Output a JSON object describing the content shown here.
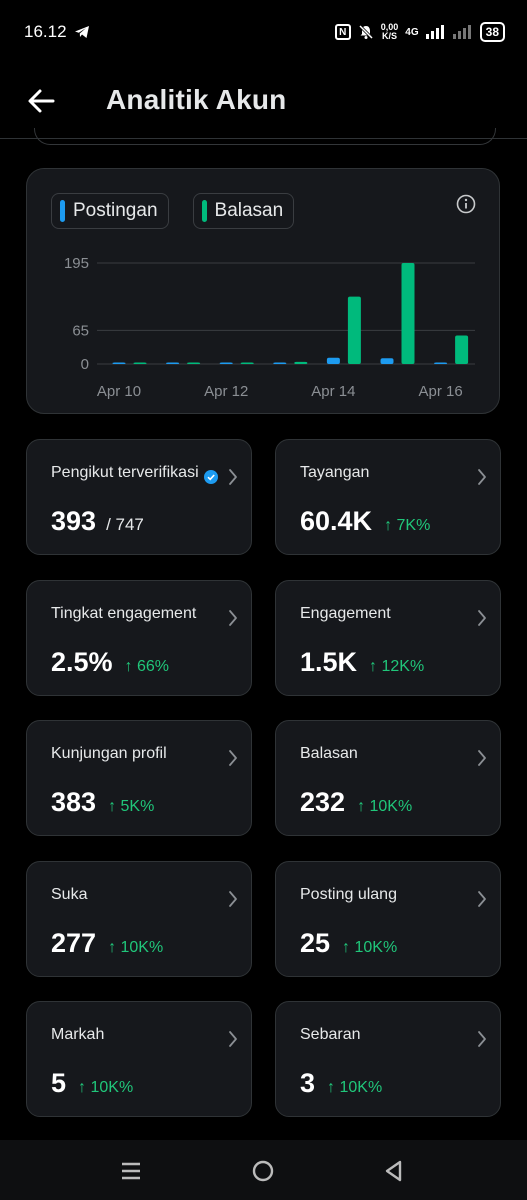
{
  "status_bar": {
    "time": "16.12",
    "speed_top": "0,00",
    "speed_bottom": "K/S",
    "network": "4G",
    "battery": "38"
  },
  "header": {
    "title": "Analitik Akun"
  },
  "chart_data": {
    "type": "bar",
    "categories": [
      "Apr 10",
      "Apr 11",
      "Apr 12",
      "Apr 13",
      "Apr 14",
      "Apr 15",
      "Apr 16"
    ],
    "x_tick_labels": [
      "Apr 10",
      "Apr 12",
      "Apr 14",
      "Apr 16"
    ],
    "y_tick_labels": [
      "195",
      "65",
      "0"
    ],
    "y_ticks": [
      195,
      65,
      0
    ],
    "ylim": [
      0,
      195
    ],
    "grid": true,
    "series": [
      {
        "name": "Postingan",
        "color": "#1d9bf0",
        "values": [
          0,
          0,
          1,
          3,
          12,
          11,
          2
        ]
      },
      {
        "name": "Balasan",
        "color": "#00ba7c",
        "values": [
          0,
          2,
          1,
          4,
          130,
          195,
          55
        ]
      }
    ]
  },
  "tiles": [
    {
      "label": "Pengikut terverifikasi",
      "value": "393",
      "sub": "/ 747",
      "change": ""
    },
    {
      "label": "Tayangan",
      "value": "60.4K",
      "sub": "",
      "change": "↑ 7K%"
    },
    {
      "label": "Tingkat engagement",
      "value": "2.5%",
      "sub": "",
      "change": "↑ 66%"
    },
    {
      "label": "Engagement",
      "value": "1.5K",
      "sub": "",
      "change": "↑ 12K%"
    },
    {
      "label": "Kunjungan profil",
      "value": "383",
      "sub": "",
      "change": "↑ 5K%"
    },
    {
      "label": "Balasan",
      "value": "232",
      "sub": "",
      "change": "↑ 10K%"
    },
    {
      "label": "Suka",
      "value": "277",
      "sub": "",
      "change": "↑ 10K%"
    },
    {
      "label": "Posting ulang",
      "value": "25",
      "sub": "",
      "change": "↑ 10K%"
    },
    {
      "label": "Markah",
      "value": "5",
      "sub": "",
      "change": "↑ 10K%"
    },
    {
      "label": "Sebaran",
      "value": "3",
      "sub": "",
      "change": "↑ 10K%"
    }
  ],
  "icons": {
    "back": "arrow-left-icon",
    "info": "info-icon",
    "chevron": "chevron-right-icon",
    "verified": "verified-badge-icon",
    "nav_recents": "menu-icon",
    "nav_home": "home-circle-icon",
    "nav_back": "back-triangle-icon"
  }
}
